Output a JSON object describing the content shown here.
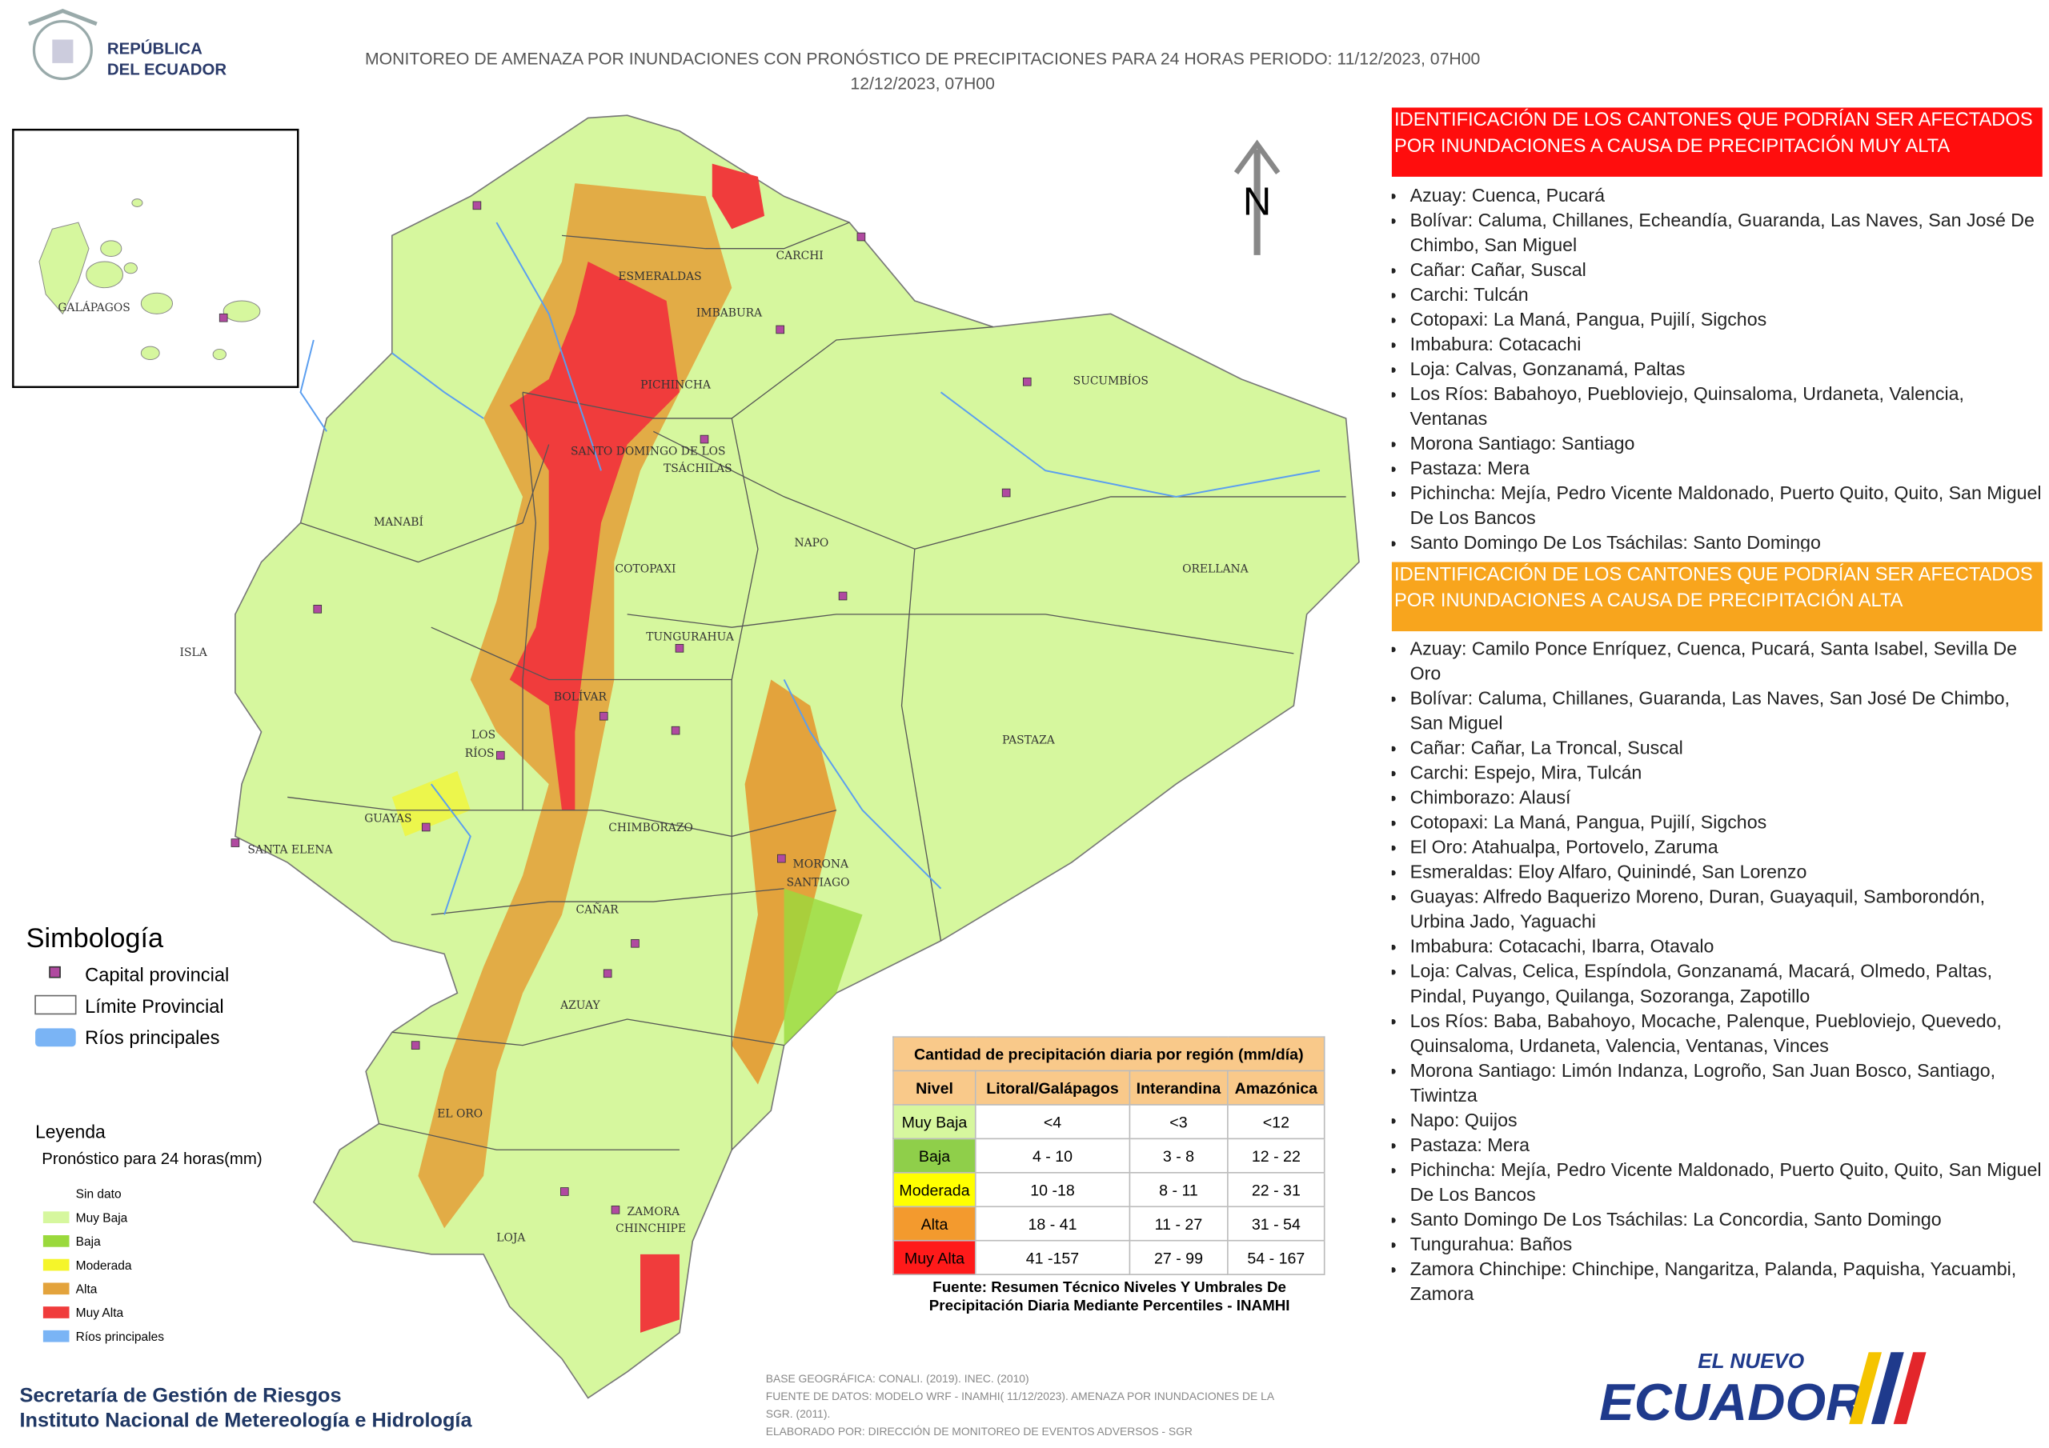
{
  "header": {
    "logo": [
      "REPÚBLICA",
      "DEL ECUADOR"
    ],
    "title": [
      "MONITOREO DE AMENAZA POR INUNDACIONES  CON PRONÓSTICO DE  PRECIPITACIONES PARA 24 HORAS  PERIODO: 11/12/2023, 07H00",
      "12/12/2023, 07H00"
    ]
  },
  "map": {
    "inset_label": "GALÁPAGOS",
    "north": "N",
    "labels": [
      "ESMERALDAS",
      "CARCHI",
      "IMBABURA",
      "PICHINCHA",
      "SUCUMBÍOS",
      "SANTO DOMINGO DE LOS",
      "TSÁCHILAS",
      "MANABÍ",
      "NAPO",
      "ORELLANA",
      "COTOPAXI",
      "TUNGURAHUA",
      "ISLA",
      "BOLÍVAR",
      "LOS",
      "RÍOS",
      "PASTAZA",
      "GUAYAS",
      "CHIMBORAZO",
      "SANTA ELENA",
      "MORONA",
      "SANTIAGO",
      "CAÑAR",
      "AZUAY",
      "EL ORO",
      "LOJA",
      "ZAMORA",
      "CHINCHIPE"
    ]
  },
  "symbology": {
    "title": "Simbología",
    "items": [
      "Capital provincial",
      "Límite Provincial",
      "Ríos principales"
    ]
  },
  "legend": {
    "title": "Leyenda",
    "subtitle": "Pronóstico para 24 horas(mm)",
    "items": [
      {
        "label": "Sin dato"
      },
      {
        "label": "Muy Baja",
        "color": "#d6f79e"
      },
      {
        "label": "Baja",
        "color": "#9ad93c"
      },
      {
        "label": "Moderada",
        "color": "#f5f52a"
      },
      {
        "label": "Alta",
        "color": "#e3a33c"
      },
      {
        "label": "Muy Alta",
        "color": "#f03c3c"
      },
      {
        "label": "Ríos principales",
        "color": "#7ab4f5"
      }
    ]
  },
  "table": {
    "title": "Cantidad de precipitación diaria por región (mm/día)",
    "columns": [
      "Nivel",
      "Litoral/Galápagos",
      "Interandina",
      "Amazónica"
    ],
    "rows": [
      [
        "Muy Baja",
        "<4",
        "<3",
        "<12"
      ],
      [
        "Baja",
        "4 - 10",
        "3 - 8",
        "12 - 22"
      ],
      [
        "Moderada",
        "10 -18",
        "8 - 11",
        "22 - 31"
      ],
      [
        "Alta",
        "18 - 41",
        "11 - 27",
        "31 - 54"
      ],
      [
        "Muy Alta",
        "41 -157",
        "27 - 99",
        "54 - 167"
      ]
    ],
    "source": [
      "Fuente: Resumen Técnico Niveles Y Umbrales De",
      "Precipitación Diaria Mediante Percentiles - INAMHI"
    ]
  },
  "panels": [
    {
      "title": "IDENTIFICACIÓN DE LOS CANTONES QUE PODRÍAN SER AFECTADOS POR INUNDACIONES  A CAUSA DE PRECIPITACIÓN MUY ALTA",
      "items": [
        "Azuay: Cuenca, Pucará",
        "Bolívar: Caluma, Chillanes, Echeandía, Guaranda, Las Naves, San José De Chimbo, San Miguel",
        "Cañar: Cañar, Suscal",
        "Carchi: Tulcán",
        "Cotopaxi: La Maná, Pangua, Pujilí, Sigchos",
        "Imbabura: Cotacachi",
        "Loja: Calvas, Gonzanamá, Paltas",
        "Los Ríos: Babahoyo, Puebloviejo, Quinsaloma, Urdaneta, Valencia, Ventanas",
        "Morona Santiago: Santiago",
        "Pastaza: Mera",
        "Pichincha: Mejía, Pedro Vicente Maldonado, Puerto Quito, Quito, San Miguel De Los Bancos",
        "Santo Domingo De Los Tsáchilas: Santo Domingo"
      ]
    },
    {
      "title": "IDENTIFICACIÓN DE LOS CANTONES QUE  PODRÍAN SER AFECTADOS POR INUNDACIONES  A CAUSA DE PRECIPITACIÓN  ALTA",
      "items": [
        "Azuay: Camilo Ponce Enríquez, Cuenca, Pucará, Santa Isabel, Sevilla De Oro",
        "Bolívar: Caluma, Chillanes, Guaranda, Las Naves, San José De Chimbo, San Miguel",
        "Cañar: Cañar, La Troncal, Suscal",
        "Carchi: Espejo, Mira, Tulcán",
        "Chimborazo: Alausí",
        "Cotopaxi: La Maná, Pangua, Pujilí, Sigchos",
        "El Oro: Atahualpa, Portovelo, Zaruma",
        "Esmeraldas: Eloy Alfaro, Quinindé, San Lorenzo",
        "Guayas: Alfredo Baquerizo Moreno, Duran, Guayaquil, Samborondón, Urbina Jado, Yaguachi",
        "Imbabura: Cotacachi, Ibarra, Otavalo",
        "Loja: Calvas, Celica, Espíndola, Gonzanamá, Macará, Olmedo, Paltas, Pindal, Puyango, Quilanga, Sozoranga, Zapotillo",
        "Los Ríos: Baba, Babahoyo, Mocache, Palenque, Puebloviejo, Quevedo, Quinsaloma, Urdaneta, Valencia, Ventanas, Vinces",
        "Morona Santiago: Limón Indanza, Logroño, San Juan Bosco, Santiago, Tiwintza",
        "Napo: Quijos",
        "Pastaza: Mera",
        "Pichincha: Mejía, Pedro Vicente Maldonado, Puerto Quito, Quito, San Miguel De Los Bancos",
        "Santo Domingo De Los Tsáchilas: La Concordia, Santo Domingo",
        "Tungurahua: Baños",
        "Zamora Chinchipe: Chinchipe, Nangaritza, Palanda, Paquisha, Yacuambi, Zamora"
      ]
    }
  ],
  "footer": {
    "orgs": [
      "Secretaría de Gestión de Riesgos",
      "Instituto Nacional de Metereología e Hidrología"
    ],
    "notes": [
      "BASE GEOGRÁFICA: CONALI. (2019). INEC. (2010)",
      "FUENTE DE DATOS: MODELO WRF - INAMHI( 11/12/2023).  AMENAZA POR INUNDACIONES DE LA",
      "SGR. (2011).",
      "ELABORADO POR: DIRECCIÓN DE MONITOREO DE EVENTOS ADVERSOS - SGR"
    ],
    "logo": [
      "EL NUEVO",
      "ECUADOR"
    ]
  }
}
